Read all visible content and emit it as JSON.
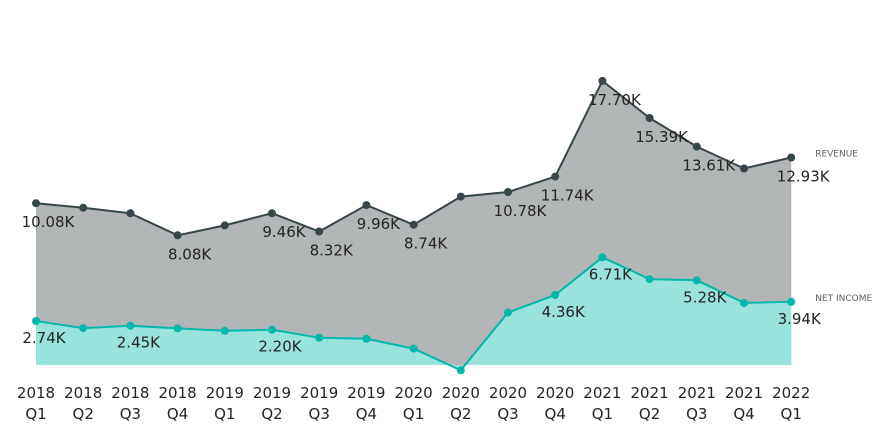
{
  "chart_data": {
    "type": "area",
    "title": "",
    "xlabel": "",
    "ylabel": "",
    "ylim": [
      0,
      20000
    ],
    "grid": false,
    "categories": [
      [
        "2018",
        "Q1"
      ],
      [
        "2018",
        "Q2"
      ],
      [
        "2018",
        "Q3"
      ],
      [
        "2018",
        "Q4"
      ],
      [
        "2019",
        "Q1"
      ],
      [
        "2019",
        "Q2"
      ],
      [
        "2019",
        "Q3"
      ],
      [
        "2019",
        "Q4"
      ],
      [
        "2020",
        "Q1"
      ],
      [
        "2020",
        "Q2"
      ],
      [
        "2020",
        "Q3"
      ],
      [
        "2020",
        "Q4"
      ],
      [
        "2021",
        "Q1"
      ],
      [
        "2021",
        "Q2"
      ],
      [
        "2021",
        "Q3"
      ],
      [
        "2021",
        "Q4"
      ],
      [
        "2022",
        "Q1"
      ]
    ],
    "series": [
      {
        "name": "REVENUE",
        "color": "#374649",
        "fill": "#B3B6B7",
        "values": [
          10080,
          9800,
          9450,
          8080,
          8700,
          9460,
          8320,
          9960,
          8740,
          10490,
          10780,
          11740,
          17700,
          15390,
          13610,
          12240,
          12930
        ],
        "labels": [
          "10.08K",
          null,
          null,
          "8.08K",
          null,
          "9.46K",
          "8.32K",
          "9.96K",
          "8.74K",
          null,
          "10.78K",
          "11.74K",
          "17.70K",
          "15.39K",
          "13.61K",
          null,
          "12.93K"
        ]
      },
      {
        "name": "NET INCOME",
        "color": "#01B8AA",
        "fill": "#99E3DD",
        "values": [
          2740,
          2300,
          2450,
          2280,
          2130,
          2200,
          1700,
          1630,
          1020,
          -330,
          3270,
          4360,
          6710,
          5350,
          5280,
          3870,
          3940
        ],
        "labels": [
          "2.74K",
          null,
          "2.45K",
          null,
          null,
          "2.20K",
          null,
          null,
          null,
          null,
          null,
          "4.36K",
          "6.71K",
          null,
          "5.28K",
          null,
          "3.94K"
        ]
      }
    ],
    "legend_placement": "right, inline at series end"
  }
}
